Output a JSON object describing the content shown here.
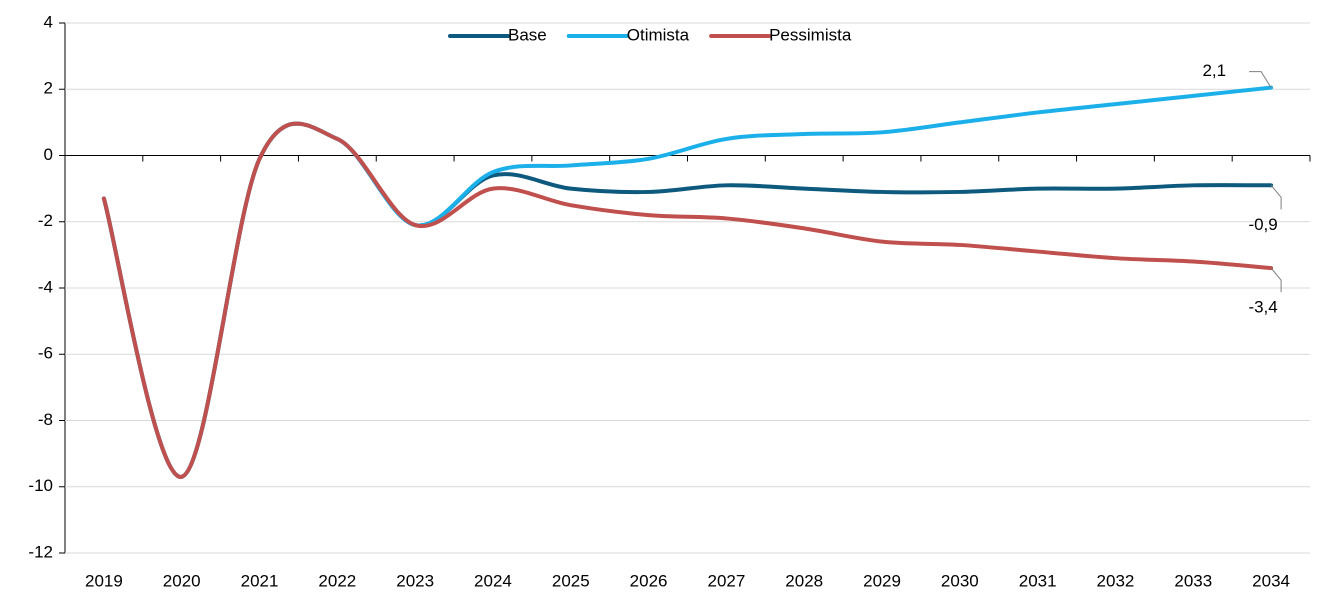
{
  "chart_data": {
    "type": "line",
    "categories": [
      "2019",
      "2020",
      "2021",
      "2022",
      "2023",
      "2024",
      "2025",
      "2026",
      "2027",
      "2028",
      "2029",
      "2030",
      "2031",
      "2032",
      "2033",
      "2034"
    ],
    "series": [
      {
        "name": "Base",
        "color": "#0e5a7e",
        "values": [
          -1.3,
          -9.7,
          -0.1,
          0.5,
          -2.1,
          -0.6,
          -1.0,
          -1.1,
          -0.9,
          -1.0,
          -1.1,
          -1.1,
          -1.0,
          -1.0,
          -0.9,
          -0.9
        ],
        "value_labels": [
          null,
          null,
          null,
          null,
          null,
          null,
          null,
          null,
          null,
          null,
          null,
          null,
          null,
          null,
          null,
          "-0,9"
        ]
      },
      {
        "name": "Otimista",
        "color": "#1cb0ea",
        "values": [
          -1.3,
          -9.7,
          -0.1,
          0.5,
          -2.1,
          -0.5,
          -0.3,
          -0.1,
          0.5,
          0.65,
          0.7,
          1.0,
          1.3,
          1.55,
          1.8,
          2.05
        ],
        "value_labels": [
          null,
          null,
          null,
          null,
          null,
          null,
          null,
          null,
          null,
          null,
          null,
          null,
          null,
          null,
          null,
          "2,1"
        ]
      },
      {
        "name": "Pessimista",
        "color": "#c0504d",
        "values": [
          -1.3,
          -9.7,
          -0.1,
          0.5,
          -2.1,
          -1.0,
          -1.5,
          -1.8,
          -1.9,
          -2.2,
          -2.6,
          -2.7,
          -2.9,
          -3.1,
          -3.2,
          -3.4
        ],
        "value_labels": [
          null,
          null,
          null,
          null,
          null,
          null,
          null,
          null,
          null,
          null,
          null,
          null,
          null,
          null,
          null,
          "-3,4"
        ]
      }
    ],
    "ylim": [
      -12,
      4
    ],
    "yticks": [
      -12,
      -10,
      -8,
      -6,
      -4,
      -2,
      0,
      2,
      4
    ],
    "grid": true,
    "legend": "top"
  }
}
